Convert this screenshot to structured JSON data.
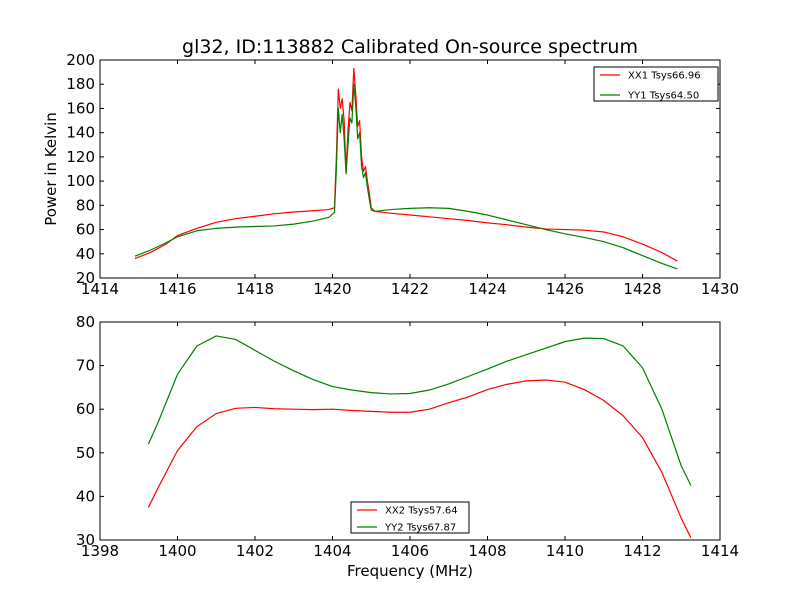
{
  "title": "gl32, ID:113882 Calibrated On-source spectrum",
  "chart_data": [
    {
      "type": "line",
      "ylabel": "Power in Kelvin",
      "xlabel": "",
      "xlim": [
        1414,
        1430
      ],
      "ylim": [
        20,
        200
      ],
      "xticks": [
        1414,
        1416,
        1418,
        1420,
        1422,
        1424,
        1426,
        1428,
        1430
      ],
      "yticks": [
        20,
        40,
        60,
        80,
        100,
        120,
        140,
        160,
        180,
        200
      ],
      "legend_position": "top-right",
      "grid": false,
      "series": [
        {
          "name": "XX1 Tsys66.96",
          "color": "#ff0000",
          "points": [
            [
              1414.9,
              36
            ],
            [
              1415.3,
              41
            ],
            [
              1415.7,
              48
            ],
            [
              1416.0,
              55
            ],
            [
              1416.5,
              61
            ],
            [
              1417.0,
              66
            ],
            [
              1417.5,
              69
            ],
            [
              1418.0,
              71
            ],
            [
              1418.5,
              73
            ],
            [
              1419.0,
              74.5
            ],
            [
              1419.5,
              75.5
            ],
            [
              1419.9,
              76.5
            ],
            [
              1420.05,
              78
            ],
            [
              1420.1,
              120
            ],
            [
              1420.15,
              176
            ],
            [
              1420.2,
              160
            ],
            [
              1420.25,
              168
            ],
            [
              1420.3,
              150
            ],
            [
              1420.35,
              108
            ],
            [
              1420.4,
              142
            ],
            [
              1420.45,
              165
            ],
            [
              1420.5,
              158
            ],
            [
              1420.55,
              193
            ],
            [
              1420.6,
              172
            ],
            [
              1420.65,
              145
            ],
            [
              1420.7,
              150
            ],
            [
              1420.75,
              120
            ],
            [
              1420.8,
              108
            ],
            [
              1420.85,
              112
            ],
            [
              1420.9,
              100
            ],
            [
              1420.95,
              90
            ],
            [
              1421.0,
              78
            ],
            [
              1421.1,
              75
            ],
            [
              1421.5,
              73.5
            ],
            [
              1422.0,
              72
            ],
            [
              1422.5,
              70.5
            ],
            [
              1423.0,
              69
            ],
            [
              1423.5,
              67.5
            ],
            [
              1424.0,
              65.5
            ],
            [
              1424.5,
              64
            ],
            [
              1425.0,
              62
            ],
            [
              1425.5,
              60.5
            ],
            [
              1426.0,
              60
            ],
            [
              1426.5,
              59.5
            ],
            [
              1427.0,
              58
            ],
            [
              1427.5,
              54
            ],
            [
              1428.0,
              48
            ],
            [
              1428.5,
              41
            ],
            [
              1428.9,
              34
            ]
          ]
        },
        {
          "name": "YY1 Tsys64.50",
          "color": "#008000",
          "points": [
            [
              1414.9,
              38
            ],
            [
              1415.3,
              43
            ],
            [
              1415.7,
              49
            ],
            [
              1416.0,
              54
            ],
            [
              1416.5,
              59
            ],
            [
              1417.0,
              61
            ],
            [
              1417.5,
              62
            ],
            [
              1418.0,
              62.5
            ],
            [
              1418.5,
              63
            ],
            [
              1419.0,
              64.5
            ],
            [
              1419.5,
              67
            ],
            [
              1419.9,
              70
            ],
            [
              1420.05,
              74
            ],
            [
              1420.1,
              110
            ],
            [
              1420.15,
              160
            ],
            [
              1420.2,
              140
            ],
            [
              1420.25,
              155
            ],
            [
              1420.3,
              135
            ],
            [
              1420.35,
              106
            ],
            [
              1420.4,
              130
            ],
            [
              1420.45,
              152
            ],
            [
              1420.5,
              148
            ],
            [
              1420.55,
              180
            ],
            [
              1420.6,
              162
            ],
            [
              1420.65,
              135
            ],
            [
              1420.7,
              140
            ],
            [
              1420.75,
              112
            ],
            [
              1420.8,
              103
            ],
            [
              1420.85,
              107
            ],
            [
              1420.9,
              95
            ],
            [
              1420.95,
              85
            ],
            [
              1421.0,
              76
            ],
            [
              1421.1,
              75
            ],
            [
              1421.5,
              76.5
            ],
            [
              1422.0,
              77.5
            ],
            [
              1422.5,
              78
            ],
            [
              1423.0,
              77.5
            ],
            [
              1423.5,
              75
            ],
            [
              1424.0,
              72
            ],
            [
              1424.5,
              68
            ],
            [
              1425.0,
              64
            ],
            [
              1425.5,
              60
            ],
            [
              1426.0,
              56.5
            ],
            [
              1426.5,
              53.5
            ],
            [
              1427.0,
              50
            ],
            [
              1427.5,
              45
            ],
            [
              1428.0,
              38.5
            ],
            [
              1428.5,
              32
            ],
            [
              1428.9,
              27.5
            ]
          ]
        }
      ]
    },
    {
      "type": "line",
      "ylabel": "",
      "xlabel": "Frequency (MHz)",
      "xlim": [
        1398,
        1414
      ],
      "ylim": [
        30,
        80
      ],
      "xticks": [
        1398,
        1400,
        1402,
        1404,
        1406,
        1408,
        1410,
        1412,
        1414
      ],
      "yticks": [
        30,
        40,
        50,
        60,
        70,
        80
      ],
      "legend_position": "bottom-center",
      "grid": false,
      "series": [
        {
          "name": "XX2 Tsys57.64",
          "color": "#ff0000",
          "points": [
            [
              1399.25,
              37.5
            ],
            [
              1399.5,
              42
            ],
            [
              1400.0,
              50.5
            ],
            [
              1400.5,
              56
            ],
            [
              1401.0,
              59
            ],
            [
              1401.5,
              60.2
            ],
            [
              1402.0,
              60.4
            ],
            [
              1402.5,
              60.1
            ],
            [
              1403.0,
              60
            ],
            [
              1403.5,
              59.9
            ],
            [
              1404.0,
              60
            ],
            [
              1404.5,
              59.7
            ],
            [
              1405.0,
              59.5
            ],
            [
              1405.5,
              59.3
            ],
            [
              1406.0,
              59.3
            ],
            [
              1406.5,
              60
            ],
            [
              1407.0,
              61.5
            ],
            [
              1407.5,
              62.8
            ],
            [
              1408.0,
              64.5
            ],
            [
              1408.5,
              65.7
            ],
            [
              1409.0,
              66.5
            ],
            [
              1409.5,
              66.7
            ],
            [
              1410.0,
              66.2
            ],
            [
              1410.5,
              64.5
            ],
            [
              1411.0,
              62
            ],
            [
              1411.5,
              58.5
            ],
            [
              1412.0,
              53.5
            ],
            [
              1412.5,
              45.5
            ],
            [
              1413.0,
              35
            ],
            [
              1413.25,
              30.5
            ]
          ]
        },
        {
          "name": "YY2 Tsys67.87",
          "color": "#008000",
          "points": [
            [
              1399.25,
              52
            ],
            [
              1399.5,
              57
            ],
            [
              1400.0,
              68
            ],
            [
              1400.5,
              74.5
            ],
            [
              1401.0,
              76.8
            ],
            [
              1401.5,
              76
            ],
            [
              1402.0,
              73.5
            ],
            [
              1402.5,
              71
            ],
            [
              1403.0,
              68.8
            ],
            [
              1403.5,
              66.8
            ],
            [
              1404.0,
              65.2
            ],
            [
              1404.5,
              64.4
            ],
            [
              1405.0,
              63.8
            ],
            [
              1405.5,
              63.5
            ],
            [
              1406.0,
              63.6
            ],
            [
              1406.5,
              64.4
            ],
            [
              1407.0,
              65.8
            ],
            [
              1407.5,
              67.5
            ],
            [
              1408.0,
              69.2
            ],
            [
              1408.5,
              71
            ],
            [
              1409.0,
              72.5
            ],
            [
              1409.5,
              74
            ],
            [
              1410.0,
              75.5
            ],
            [
              1410.5,
              76.3
            ],
            [
              1411.0,
              76.2
            ],
            [
              1411.5,
              74.5
            ],
            [
              1412.0,
              69.5
            ],
            [
              1412.5,
              60
            ],
            [
              1413.0,
              47
            ],
            [
              1413.25,
              42.5
            ]
          ]
        }
      ]
    }
  ]
}
